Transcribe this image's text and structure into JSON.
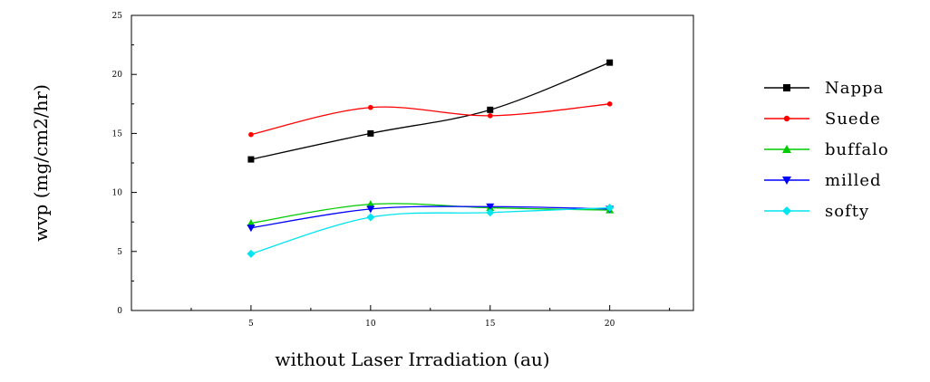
{
  "chart_data": {
    "type": "line",
    "xlabel": "without Laser Irradiation (au)",
    "ylabel": "wvp (mg/cm2/hr)",
    "x": [
      5,
      10,
      15,
      20
    ],
    "xlim": [
      0,
      23.5
    ],
    "ylim": [
      0,
      25
    ],
    "x_ticks": [
      5,
      10,
      15,
      20
    ],
    "y_ticks": [
      0,
      5,
      10,
      15,
      20,
      25
    ],
    "grid": false,
    "legend_placement": "right",
    "series": [
      {
        "name": "Nappa",
        "values": [
          12.8,
          15.0,
          17.0,
          21.0
        ],
        "color": "#000000",
        "marker": "square"
      },
      {
        "name": "Suede",
        "values": [
          14.9,
          17.2,
          16.5,
          17.5
        ],
        "color": "#ff0000",
        "marker": "circle"
      },
      {
        "name": "buffalo",
        "values": [
          7.4,
          9.0,
          8.7,
          8.5
        ],
        "color": "#00cc00",
        "marker": "triangle-up"
      },
      {
        "name": "milled",
        "values": [
          7.0,
          8.6,
          8.8,
          8.6
        ],
        "color": "#0000ff",
        "marker": "triangle-down"
      },
      {
        "name": "softy",
        "values": [
          4.8,
          7.9,
          8.3,
          8.7
        ],
        "color": "#00e5ee",
        "marker": "diamond"
      }
    ]
  }
}
